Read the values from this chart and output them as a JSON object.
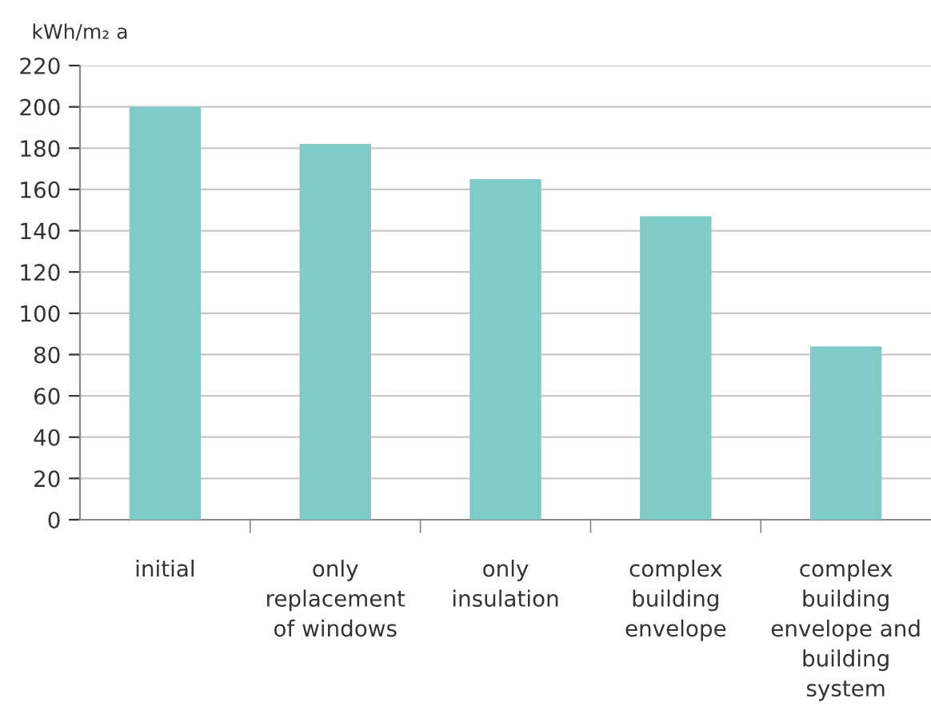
{
  "chart_data": {
    "type": "bar",
    "ylabel": "kWh/m₂ a",
    "categories": [
      "initial",
      "only\nreplacement\nof windows",
      "only\ninsulation",
      "complex\nbuilding\nenvelope",
      "complex\nbuilding\nenvelope and\nbuilding\nsystem"
    ],
    "values": [
      200,
      182,
      165,
      147,
      84
    ],
    "color": "#80cbc8",
    "ylim": [
      0,
      220
    ],
    "yticks": [
      0,
      20,
      40,
      60,
      80,
      100,
      120,
      140,
      160,
      180,
      200,
      220
    ],
    "grid": "y"
  }
}
